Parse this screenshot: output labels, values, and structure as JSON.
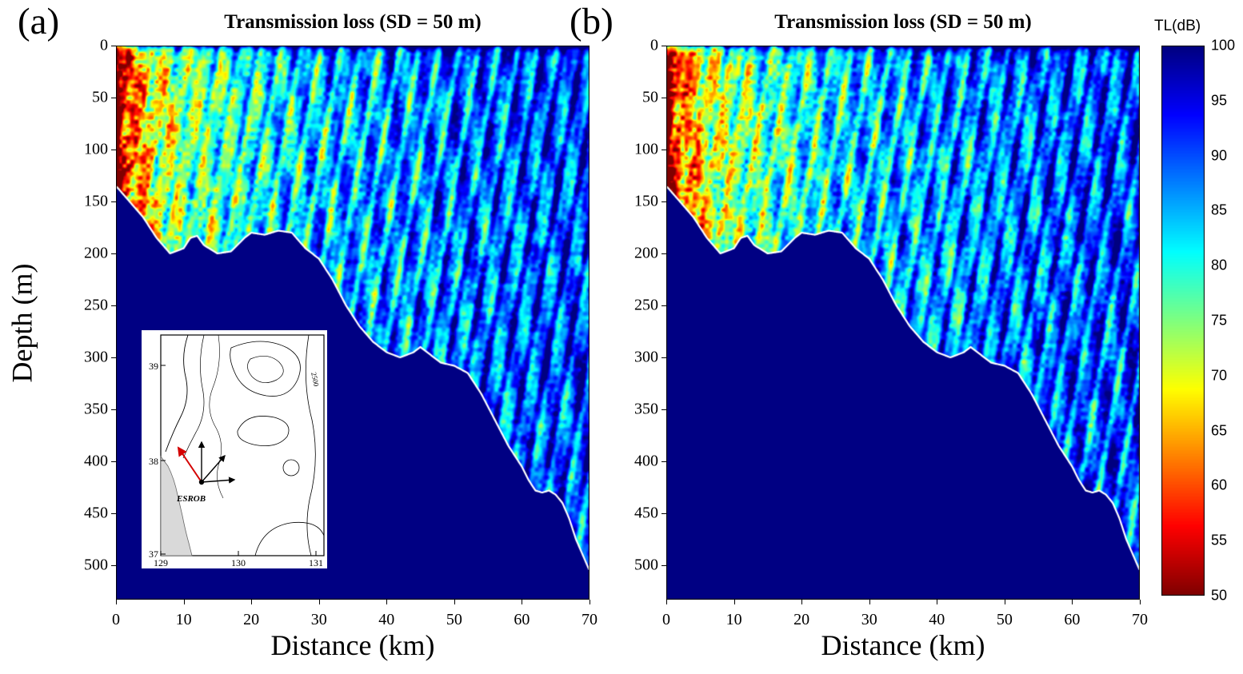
{
  "colorbar": {
    "label": "TL(dB)",
    "ticks": [
      100,
      95,
      90,
      85,
      80,
      75,
      70,
      65,
      60,
      55,
      50
    ],
    "min": 50,
    "max": 100
  },
  "chart_data": [
    {
      "type": "heatmap",
      "panel_label": "(a)",
      "title": "Transmission loss (SD = 50 m)",
      "xlabel": "Distance (km)",
      "ylabel": "Depth (m)",
      "x_ticks": [
        0,
        10,
        20,
        30,
        40,
        50,
        60,
        70
      ],
      "y_ticks": [
        0,
        50,
        100,
        150,
        200,
        250,
        300,
        350,
        400,
        450,
        500
      ],
      "x_range_km": [
        0,
        70
      ],
      "y_range_m": [
        0,
        533
      ],
      "value_label": "TL(dB)",
      "value_range_db": [
        50,
        100
      ],
      "colormap": "jet",
      "source_depth_m": 50,
      "field_description": "High acoustic intensity (TL 50-70 dB, red/orange) near the source at left within the upper 150 m, grading through yellow-green interference lobes to cyan-blue (TL 80-95 dB) beyond 40 km; dark blue below the sloping seafloor; thin high-loss stripe along the sea surface.",
      "bathymetry": {
        "distance_km": [
          0,
          2,
          4,
          6,
          8,
          10,
          11,
          12,
          13,
          15,
          17,
          19,
          20,
          22,
          24,
          26,
          28,
          30,
          32,
          34,
          36,
          38,
          40,
          42,
          44,
          45,
          46,
          48,
          50,
          52,
          54,
          56,
          58,
          60,
          61,
          62,
          63,
          64,
          65,
          66,
          67,
          68,
          69,
          70
        ],
        "depth_m": [
          135,
          150,
          165,
          185,
          200,
          195,
          185,
          183,
          192,
          200,
          198,
          185,
          180,
          182,
          178,
          180,
          195,
          205,
          225,
          250,
          270,
          285,
          295,
          300,
          295,
          290,
          295,
          305,
          308,
          315,
          335,
          360,
          385,
          405,
          418,
          428,
          430,
          428,
          432,
          440,
          455,
          475,
          490,
          505
        ]
      },
      "inset_map": {
        "y_tick_labels": [
          "39",
          "38",
          "37"
        ],
        "x_tick_labels": [
          "129",
          "130",
          "131"
        ],
        "station": "ESROB",
        "contour_label": "2500"
      }
    },
    {
      "type": "heatmap",
      "panel_label": "(b)",
      "title": "Transmission loss (SD = 50 m)",
      "xlabel": "Distance (km)",
      "x_ticks": [
        0,
        10,
        20,
        30,
        40,
        50,
        60,
        70
      ],
      "y_ticks": [
        0,
        50,
        100,
        150,
        200,
        250,
        300,
        350,
        400,
        450,
        500
      ],
      "x_range_km": [
        0,
        70
      ],
      "y_range_m": [
        0,
        533
      ],
      "value_label": "TL(dB)",
      "value_range_db": [
        50,
        100
      ],
      "colormap": "jet",
      "source_depth_m": 50,
      "field_description": "Same transmission-loss section as panel (a) with nearly identical bathymetry and loss pattern; no inset map.",
      "bathymetry": {
        "distance_km": [
          0,
          2,
          4,
          6,
          8,
          10,
          11,
          12,
          13,
          15,
          17,
          19,
          20,
          22,
          24,
          26,
          28,
          30,
          32,
          34,
          36,
          38,
          40,
          42,
          44,
          45,
          46,
          48,
          50,
          52,
          54,
          56,
          58,
          60,
          61,
          62,
          63,
          64,
          65,
          66,
          67,
          68,
          69,
          70
        ],
        "depth_m": [
          135,
          150,
          165,
          185,
          200,
          195,
          185,
          183,
          192,
          200,
          198,
          185,
          180,
          182,
          178,
          180,
          195,
          205,
          225,
          250,
          270,
          285,
          295,
          300,
          295,
          290,
          295,
          305,
          308,
          315,
          335,
          360,
          385,
          405,
          418,
          428,
          430,
          428,
          432,
          440,
          455,
          475,
          490,
          505
        ]
      }
    }
  ]
}
